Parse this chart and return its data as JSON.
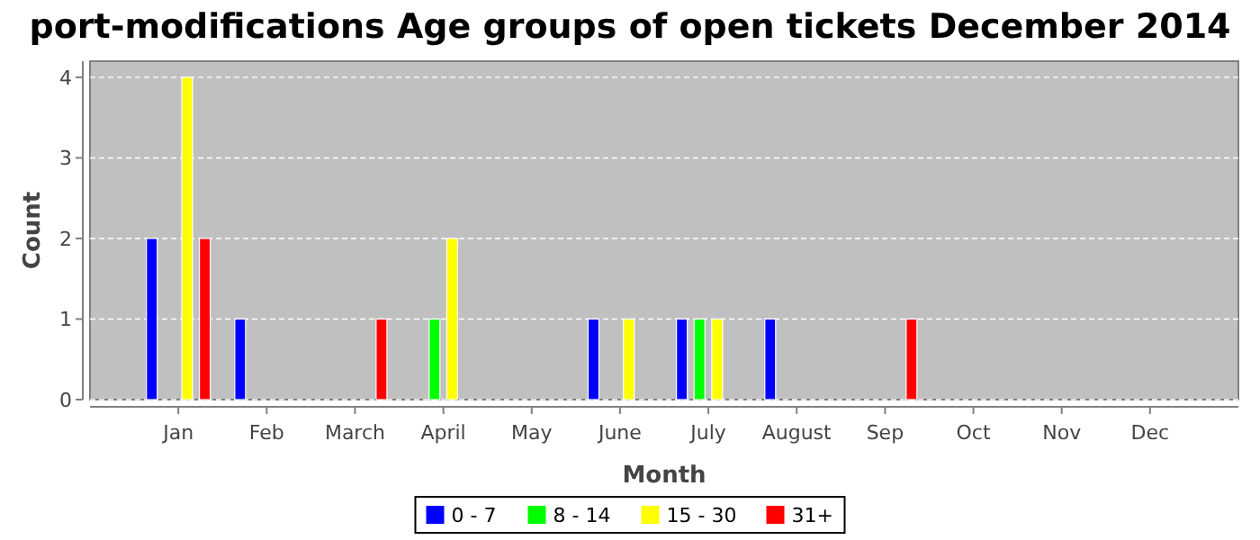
{
  "chart_data": {
    "type": "bar",
    "title": "port-modifications Age groups of open tickets December 2014",
    "xlabel": "Month",
    "ylabel": "Count",
    "categories": [
      "Jan",
      "Feb",
      "March",
      "April",
      "May",
      "June",
      "July",
      "August",
      "Sep",
      "Oct",
      "Nov",
      "Dec"
    ],
    "ylim": [
      0,
      4.2
    ],
    "yticks": [
      0,
      1,
      2,
      3,
      4
    ],
    "grid": "y",
    "legend": "bottom",
    "series": [
      {
        "name": "0 - 7",
        "color": "#0000ff",
        "values": [
          2,
          1,
          0,
          0,
          0,
          1,
          1,
          1,
          0,
          0,
          0,
          0
        ]
      },
      {
        "name": "8 - 14",
        "color": "#00ff00",
        "values": [
          0,
          0,
          0,
          1,
          0,
          0,
          1,
          0,
          0,
          0,
          0,
          0
        ]
      },
      {
        "name": "15 - 30",
        "color": "#ffff00",
        "values": [
          4,
          0,
          0,
          2,
          0,
          1,
          1,
          0,
          0,
          0,
          0,
          0
        ]
      },
      {
        "name": "31+",
        "color": "#ff0000",
        "values": [
          2,
          0,
          1,
          0,
          0,
          0,
          0,
          0,
          1,
          0,
          0,
          0
        ]
      }
    ]
  }
}
